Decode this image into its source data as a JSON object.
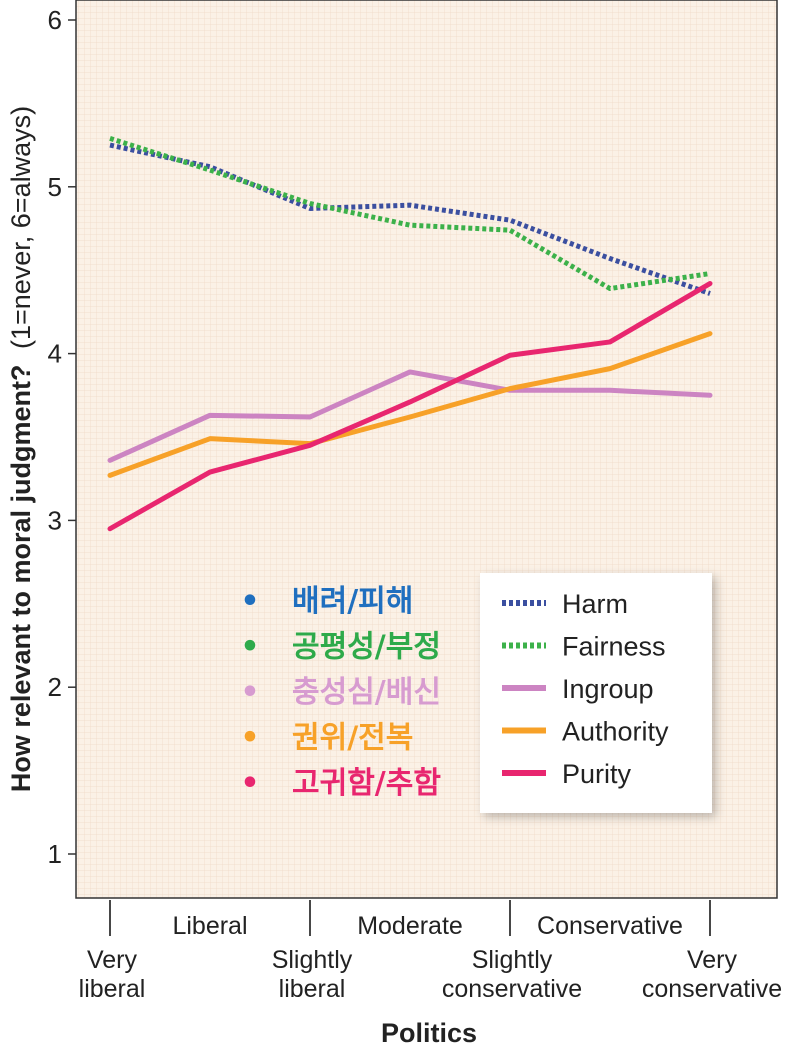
{
  "chart_data": {
    "type": "line",
    "xlabel": "Politics",
    "ylabel_bold": "How relevant to moral judgment?",
    "ylabel_note": "(1=never, 6=always)",
    "ylim": [
      0.8,
      6
    ],
    "yticks": [
      "1",
      "2",
      "3",
      "4",
      "5",
      "6"
    ],
    "categories": [
      {
        "top": "",
        "bottom": [
          "Very",
          "liberal"
        ]
      },
      {
        "top": "Liberal",
        "bottom": []
      },
      {
        "top": "",
        "bottom": [
          "Slightly",
          "liberal"
        ]
      },
      {
        "top": "Moderate",
        "bottom": []
      },
      {
        "top": "",
        "bottom": [
          "Slightly",
          "conservative"
        ]
      },
      {
        "top": "Conservative",
        "bottom": []
      },
      {
        "top": "",
        "bottom": [
          "Very",
          "conservative"
        ]
      }
    ],
    "series": [
      {
        "name": "Harm",
        "color": "#3b4fa0",
        "style": "dotted",
        "values": [
          5.25,
          5.12,
          4.87,
          4.89,
          4.8,
          4.57,
          4.36
        ]
      },
      {
        "name": "Fairness",
        "color": "#3cb14a",
        "style": "dotted",
        "values": [
          5.29,
          5.1,
          4.9,
          4.77,
          4.74,
          4.39,
          4.48
        ]
      },
      {
        "name": "Ingroup",
        "color": "#cc84c2",
        "style": "solid",
        "values": [
          3.36,
          3.63,
          3.62,
          3.89,
          3.78,
          3.78,
          3.75
        ]
      },
      {
        "name": "Authority",
        "color": "#f7a128",
        "style": "solid",
        "values": [
          3.27,
          3.49,
          3.46,
          3.62,
          3.79,
          3.91,
          4.12
        ]
      },
      {
        "name": "Purity",
        "color": "#e8266f",
        "style": "solid",
        "values": [
          2.95,
          3.29,
          3.45,
          3.71,
          3.99,
          4.07,
          4.42
        ]
      }
    ],
    "legend": {
      "position": "bottom-right"
    },
    "annotations": [
      {
        "bullet": "•",
        "text": "배려/피해",
        "color": "#1f6fbf"
      },
      {
        "bullet": "•",
        "text": "공평성/부정",
        "color": "#2eaa4a"
      },
      {
        "bullet": "•",
        "text": "충성심/배신",
        "color": "#d79bd0"
      },
      {
        "bullet": "•",
        "text": "권위/전복",
        "color": "#f7a128"
      },
      {
        "bullet": "•",
        "text": "고귀함/추함",
        "color": "#e8266f"
      }
    ],
    "plot_background": "#fbf1e6",
    "grid_color": "#f0d9c6"
  }
}
